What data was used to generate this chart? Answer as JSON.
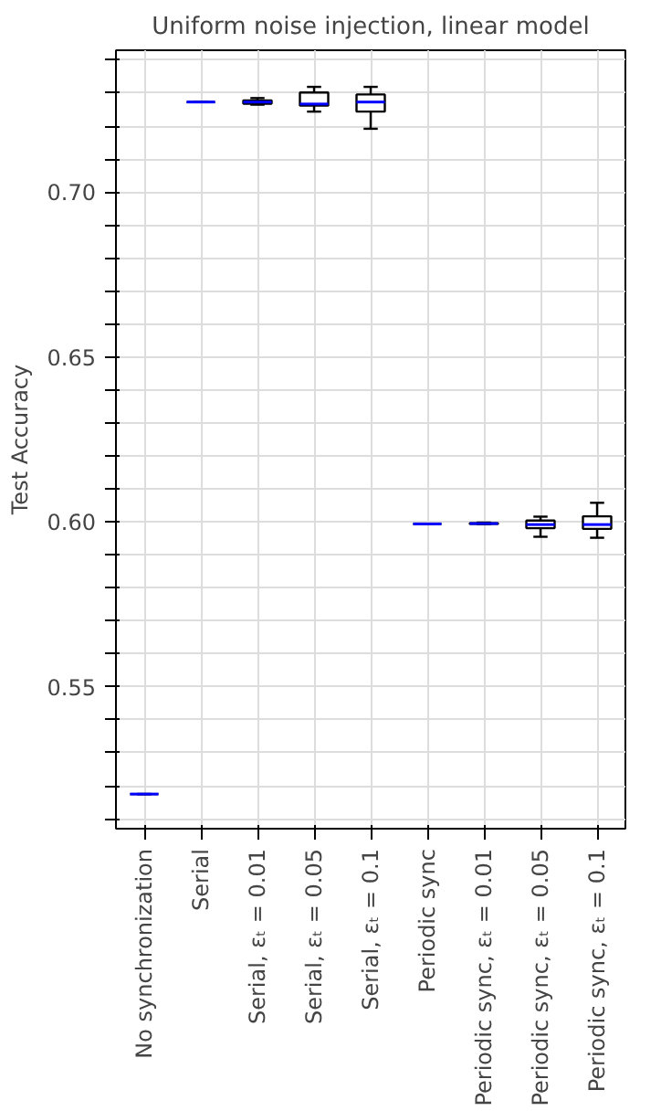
{
  "chart_data": {
    "type": "box",
    "title": "Uniform noise injection, linear model",
    "ylabel": "Test Accuracy",
    "categories": [
      "No synchronization",
      "Serial",
      "Serial, εₜ = 0.01",
      "Serial, εₜ = 0.05",
      "Serial, εₜ = 0.1",
      "Periodic sync",
      "Periodic sync, εₜ = 0.01",
      "Periodic sync, εₜ = 0.05",
      "Periodic sync, εₜ = 0.1"
    ],
    "boxes": [
      {
        "low": 0.5175,
        "q1": 0.5175,
        "median": 0.5175,
        "q3": 0.5175,
        "high": 0.5175
      },
      {
        "low": 0.7273,
        "q1": 0.7273,
        "median": 0.7273,
        "q3": 0.7273,
        "high": 0.7273
      },
      {
        "low": 0.7265,
        "q1": 0.7268,
        "median": 0.7273,
        "q3": 0.7278,
        "high": 0.7285
      },
      {
        "low": 0.7244,
        "q1": 0.7262,
        "median": 0.7267,
        "q3": 0.7302,
        "high": 0.7319
      },
      {
        "low": 0.7192,
        "q1": 0.7244,
        "median": 0.7273,
        "q3": 0.7296,
        "high": 0.7319
      },
      {
        "low": 0.5994,
        "q1": 0.5994,
        "median": 0.5994,
        "q3": 0.5994,
        "high": 0.5994
      },
      {
        "low": 0.5993,
        "q1": 0.5994,
        "median": 0.5995,
        "q3": 0.5996,
        "high": 0.5998
      },
      {
        "low": 0.5955,
        "q1": 0.5981,
        "median": 0.5992,
        "q3": 0.6004,
        "high": 0.6016
      },
      {
        "low": 0.5952,
        "q1": 0.5979,
        "median": 0.5992,
        "q3": 0.6017,
        "high": 0.6058
      }
    ],
    "ylim": [
      0.507,
      0.743
    ],
    "yticks": [
      {
        "value": 0.51,
        "label": null
      },
      {
        "value": 0.52,
        "label": null
      },
      {
        "value": 0.53,
        "label": null
      },
      {
        "value": 0.54,
        "label": null
      },
      {
        "value": 0.55,
        "label": "0.55"
      },
      {
        "value": 0.56,
        "label": null
      },
      {
        "value": 0.57,
        "label": null
      },
      {
        "value": 0.58,
        "label": null
      },
      {
        "value": 0.59,
        "label": null
      },
      {
        "value": 0.6,
        "label": "0.60"
      },
      {
        "value": 0.61,
        "label": null
      },
      {
        "value": 0.62,
        "label": null
      },
      {
        "value": 0.63,
        "label": null
      },
      {
        "value": 0.64,
        "label": null
      },
      {
        "value": 0.65,
        "label": "0.65"
      },
      {
        "value": 0.66,
        "label": null
      },
      {
        "value": 0.67,
        "label": null
      },
      {
        "value": 0.68,
        "label": null
      },
      {
        "value": 0.69,
        "label": null
      },
      {
        "value": 0.7,
        "label": "0.70"
      },
      {
        "value": 0.71,
        "label": null
      },
      {
        "value": 0.72,
        "label": null
      },
      {
        "value": 0.73,
        "label": null
      },
      {
        "value": 0.74,
        "label": null
      }
    ],
    "grid": true
  }
}
